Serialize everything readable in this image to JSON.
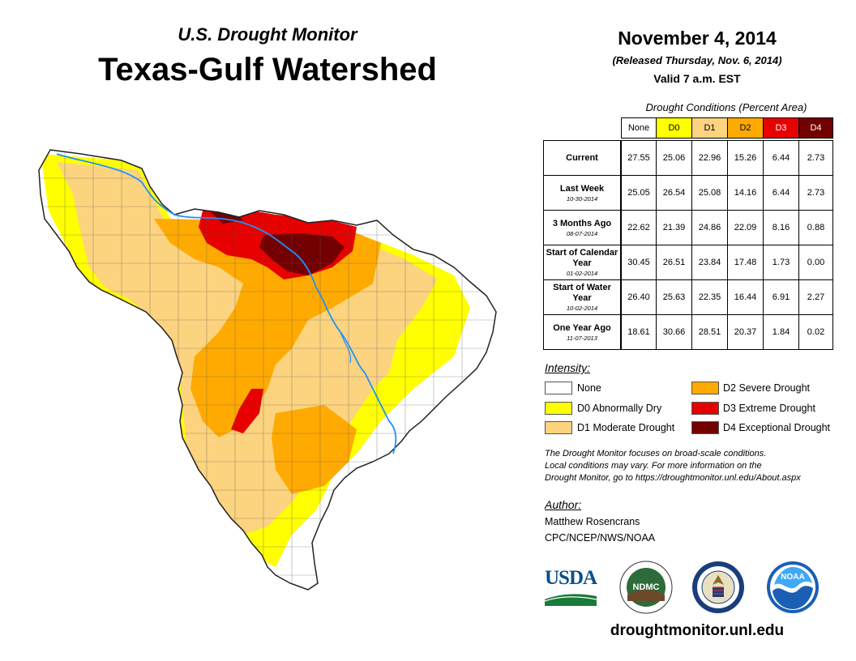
{
  "header": {
    "subtitle": "U.S. Drought Monitor",
    "title": "Texas-Gulf Watershed"
  },
  "report": {
    "date": "November 4, 2014",
    "released": "(Released Thursday, Nov. 6, 2014)",
    "valid": "Valid 7 a.m. EST"
  },
  "table": {
    "caption": "Drought Conditions (Percent Area)",
    "columns": [
      {
        "label": "None",
        "color": "#ffffff"
      },
      {
        "label": "D0",
        "color": "#ffff00"
      },
      {
        "label": "D1",
        "color": "#fcd37f"
      },
      {
        "label": "D2",
        "color": "#ffaa00"
      },
      {
        "label": "D3",
        "color": "#e60000"
      },
      {
        "label": "D4",
        "color": "#730000"
      }
    ],
    "rows": [
      {
        "label": "Current",
        "date": "",
        "values": [
          "27.55",
          "25.06",
          "22.96",
          "15.26",
          "6.44",
          "2.73"
        ]
      },
      {
        "label": "Last Week",
        "date": "10-30-2014",
        "values": [
          "25.05",
          "26.54",
          "25.08",
          "14.16",
          "6.44",
          "2.73"
        ]
      },
      {
        "label": "3 Months Ago",
        "date": "08-07-2014",
        "values": [
          "22.62",
          "21.39",
          "24.86",
          "22.09",
          "8.16",
          "0.88"
        ]
      },
      {
        "label": "Start of Calendar Year",
        "date": "01-02-2014",
        "values": [
          "30.45",
          "26.51",
          "23.84",
          "17.48",
          "1.73",
          "0.00"
        ]
      },
      {
        "label": "Start of Water Year",
        "date": "10-02-2014",
        "values": [
          "26.40",
          "25.63",
          "22.35",
          "16.44",
          "6.91",
          "2.27"
        ]
      },
      {
        "label": "One Year Ago",
        "date": "11-07-2013",
        "values": [
          "18.61",
          "30.66",
          "28.51",
          "20.37",
          "1.84",
          "0.02"
        ]
      }
    ]
  },
  "legend": {
    "title": "Intensity:",
    "items": [
      {
        "label": "None",
        "color": "#ffffff"
      },
      {
        "label": "D0 Abnormally Dry",
        "color": "#ffff00"
      },
      {
        "label": "D1 Moderate Drought",
        "color": "#fcd37f"
      },
      {
        "label": "D2 Severe Drought",
        "color": "#ffaa00"
      },
      {
        "label": "D3 Extreme Drought",
        "color": "#e60000"
      },
      {
        "label": "D4 Exceptional Drought",
        "color": "#730000"
      }
    ]
  },
  "note": {
    "line1": "The Drought Monitor focuses on broad-scale conditions.",
    "line2": "Local conditions may vary. For more information on the",
    "line3": "Drought Monitor, go to https://droughtmonitor.unl.edu/About.aspx"
  },
  "author": {
    "label": "Author:",
    "name": "Matthew Rosencrans",
    "org": "CPC/NCEP/NWS/NOAA"
  },
  "logos": {
    "usda": "USDA",
    "ndmc": "NDMC",
    "noaa": "NOAA"
  },
  "website": "droughtmonitor.unl.edu",
  "colors": {
    "river": "#1e90ff",
    "county_lines": "#555555"
  }
}
